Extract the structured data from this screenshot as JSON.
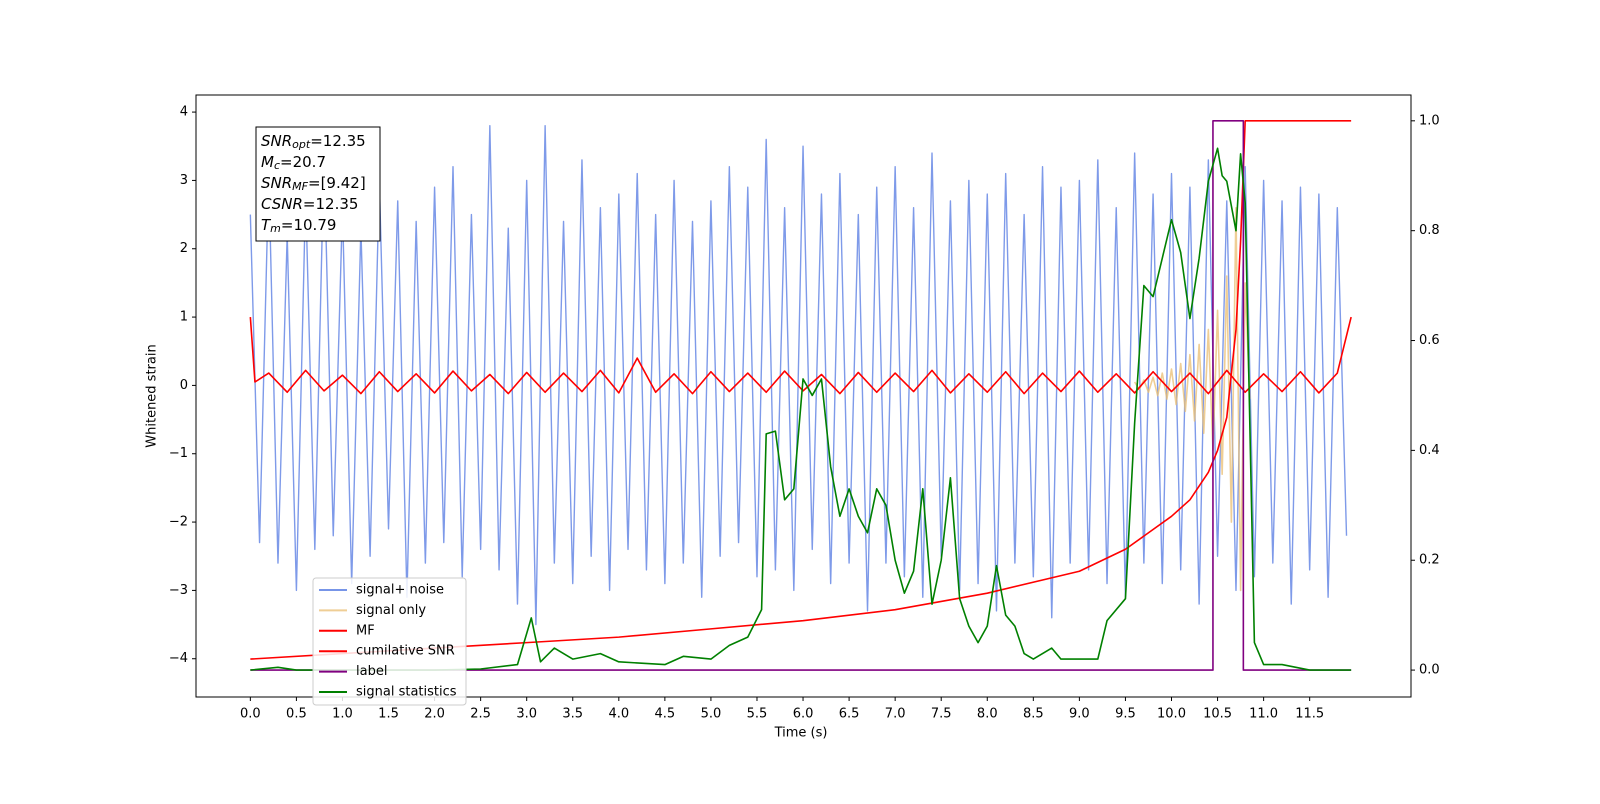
{
  "chart_data": {
    "type": "line",
    "xlabel": "Time (s)",
    "ylabel": "Whitened strain",
    "xlim": [
      -0.59,
      12.6
    ],
    "ylim": [
      -4.56,
      4.25
    ],
    "y2lim": [
      -0.049,
      1.047
    ],
    "xticks": [
      {
        "value": 0,
        "label": "0.0"
      },
      0.5,
      {
        "value": 1,
        "label": "1.0"
      },
      1.5,
      {
        "value": 2,
        "label": "2.0"
      },
      2.5,
      {
        "value": 3,
        "label": "3.0"
      },
      3.5,
      {
        "value": 4,
        "label": "4.0"
      },
      4.5,
      {
        "value": 5,
        "label": "5.0"
      },
      5.5,
      {
        "value": 6,
        "label": "6.0"
      },
      6.5,
      {
        "value": 7,
        "label": "7.0"
      },
      7.5,
      {
        "value": 8,
        "label": "8.0"
      },
      8.5,
      {
        "value": 9,
        "label": "9.0"
      },
      9.5,
      {
        "value": 10,
        "label": "10.0"
      },
      10.5,
      {
        "value": 11,
        "label": "11.0"
      },
      11.5
    ],
    "yticks": [
      {
        "value": -4,
        "label": "−4"
      },
      {
        "value": -3,
        "label": "−3"
      },
      {
        "value": -2,
        "label": "−2"
      },
      {
        "value": -1,
        "label": "−1"
      },
      0,
      1,
      2,
      3,
      4
    ],
    "y2ticks": [
      {
        "value": 0,
        "label": "0.0"
      },
      0.2,
      0.4,
      0.6,
      0.8,
      {
        "value": 1,
        "label": "1.0"
      }
    ],
    "legend_loc": "lower left",
    "annotation": [
      {
        "symbol": "SNR",
        "sub": "opt",
        "text": "=12.35"
      },
      {
        "symbol": "M",
        "sub": "c",
        "text": "=20.7"
      },
      {
        "symbol": "SNR",
        "sub": "MF",
        "text": "=[9.42]"
      },
      {
        "symbol": "CSNR",
        "text": "=12.35"
      },
      {
        "symbol": "T",
        "sub": "m",
        "text": "=10.79"
      }
    ],
    "series": [
      {
        "name": "signal+ noise",
        "color": "#7795e8",
        "x": [
          0.0,
          0.1,
          0.2,
          0.3,
          0.4,
          0.5,
          0.6,
          0.7,
          0.8,
          0.9,
          1.0,
          1.1,
          1.2,
          1.3,
          1.4,
          1.5,
          1.6,
          1.7,
          1.8,
          1.9,
          2.0,
          2.1,
          2.2,
          2.3,
          2.4,
          2.5,
          2.6,
          2.7,
          2.8,
          2.9,
          3.0,
          3.1,
          3.2,
          3.3,
          3.4,
          3.5,
          3.6,
          3.7,
          3.8,
          3.9,
          4.0,
          4.1,
          4.2,
          4.3,
          4.4,
          4.5,
          4.6,
          4.7,
          4.8,
          4.9,
          5.0,
          5.1,
          5.2,
          5.3,
          5.4,
          5.5,
          5.6,
          5.7,
          5.8,
          5.9,
          6.0,
          6.1,
          6.2,
          6.3,
          6.4,
          6.5,
          6.6,
          6.7,
          6.8,
          6.9,
          7.0,
          7.1,
          7.2,
          7.3,
          7.4,
          7.5,
          7.6,
          7.7,
          7.8,
          7.9,
          8.0,
          8.1,
          8.2,
          8.3,
          8.4,
          8.5,
          8.6,
          8.7,
          8.8,
          8.9,
          9.0,
          9.1,
          9.2,
          9.3,
          9.4,
          9.5,
          9.6,
          9.7,
          9.8,
          9.9,
          10.0,
          10.1,
          10.2,
          10.3,
          10.4,
          10.5,
          10.6,
          10.7,
          10.8,
          10.9,
          11.0,
          11.1,
          11.2,
          11.3,
          11.4,
          11.5,
          11.6,
          11.7,
          11.8,
          11.9
        ],
        "values": [
          2.5,
          -2.3,
          3.1,
          -2.6,
          2.2,
          -3.0,
          2.8,
          -2.4,
          3.4,
          -2.2,
          2.6,
          -2.9,
          2.3,
          -2.5,
          3.0,
          -2.1,
          2.7,
          -3.1,
          2.4,
          -2.6,
          2.9,
          -2.3,
          3.2,
          -2.8,
          2.5,
          -2.4,
          3.8,
          -2.7,
          2.3,
          -3.2,
          3.0,
          -3.5,
          3.8,
          -2.6,
          2.4,
          -2.9,
          3.3,
          -2.5,
          2.6,
          -3.0,
          2.8,
          -2.4,
          3.1,
          -2.7,
          2.5,
          -2.9,
          3.0,
          -2.6,
          2.4,
          -3.1,
          2.7,
          -2.5,
          3.2,
          -2.3,
          2.9,
          -2.8,
          3.6,
          -2.7,
          2.6,
          -3.0,
          3.5,
          -2.4,
          2.8,
          -2.9,
          3.1,
          -2.6,
          2.5,
          -3.3,
          2.9,
          -2.6,
          3.2,
          -2.8,
          2.6,
          -3.1,
          3.4,
          -2.5,
          2.7,
          -3.0,
          3.0,
          -2.9,
          2.8,
          -3.3,
          3.1,
          -2.6,
          2.5,
          -2.8,
          3.2,
          -3.4,
          2.9,
          -2.6,
          3.0,
          -2.7,
          3.3,
          -2.9,
          2.6,
          -3.1,
          3.4,
          -2.6,
          2.8,
          -2.9,
          3.1,
          -2.7,
          2.9,
          -3.2,
          3.3,
          -2.5,
          2.7,
          -3.0,
          3.2,
          -2.8,
          3.0,
          -2.6,
          2.7,
          -3.2,
          2.9,
          -2.7,
          2.8,
          -3.1,
          2.6,
          -2.2
        ]
      },
      {
        "name": "signal only",
        "color": "#e9bd72",
        "x": [
          9.6,
          9.65,
          9.7,
          9.75,
          9.8,
          9.85,
          9.9,
          9.95,
          10.0,
          10.05,
          10.1,
          10.15,
          10.2,
          10.25,
          10.3,
          10.35,
          10.4,
          10.45,
          10.5,
          10.55,
          10.6,
          10.65,
          10.7,
          10.75,
          10.8,
          10.85
        ],
        "values": [
          0.05,
          -0.06,
          0.08,
          -0.1,
          0.12,
          -0.15,
          0.18,
          -0.2,
          0.24,
          -0.28,
          0.32,
          -0.38,
          0.45,
          -0.52,
          0.6,
          -0.7,
          0.82,
          -0.95,
          1.1,
          -1.3,
          1.6,
          -2.0,
          2.6,
          -3.0,
          1.5,
          -0.2
        ]
      },
      {
        "name": "MF",
        "color": "#ff0000",
        "x": [
          0,
          0.05,
          0.2,
          0.4,
          0.6,
          0.8,
          1.0,
          1.2,
          1.4,
          1.6,
          1.8,
          2.0,
          2.2,
          2.4,
          2.6,
          2.8,
          3.0,
          3.2,
          3.4,
          3.6,
          3.8,
          4.0,
          4.2,
          4.4,
          4.6,
          4.8,
          5.0,
          5.2,
          5.4,
          5.6,
          5.8,
          6.0,
          6.2,
          6.4,
          6.6,
          6.8,
          7.0,
          7.2,
          7.4,
          7.6,
          7.8,
          8.0,
          8.2,
          8.4,
          8.6,
          8.8,
          9.0,
          9.2,
          9.4,
          9.6,
          9.8,
          10.0,
          10.2,
          10.4,
          10.6,
          10.8,
          11.0,
          11.2,
          11.4,
          11.6,
          11.8,
          11.95
        ],
        "values": [
          1.0,
          0.05,
          0.18,
          -0.1,
          0.22,
          -0.08,
          0.15,
          -0.12,
          0.2,
          -0.09,
          0.17,
          -0.11,
          0.21,
          -0.08,
          0.16,
          -0.12,
          0.19,
          -0.1,
          0.18,
          -0.09,
          0.22,
          -0.11,
          0.4,
          -0.1,
          0.17,
          -0.12,
          0.2,
          -0.09,
          0.18,
          -0.1,
          0.21,
          -0.08,
          0.16,
          -0.12,
          0.19,
          -0.1,
          0.18,
          -0.09,
          0.22,
          -0.11,
          0.17,
          -0.1,
          0.2,
          -0.12,
          0.18,
          -0.09,
          0.21,
          -0.1,
          0.17,
          -0.11,
          0.2,
          -0.09,
          0.18,
          -0.12,
          0.22,
          -0.1,
          0.17,
          -0.09,
          0.2,
          -0.11,
          0.18,
          1.0
        ]
      },
      {
        "name": "cumilative SNR",
        "color": "#ff0000",
        "axis": "y2",
        "x": [
          0,
          1,
          2,
          3,
          4,
          5,
          6,
          7,
          8,
          9,
          9.5,
          10,
          10.2,
          10.4,
          10.5,
          10.6,
          10.7,
          10.75,
          10.8,
          11,
          11.95
        ],
        "values": [
          0.02,
          0.03,
          0.04,
          0.05,
          0.06,
          0.075,
          0.09,
          0.11,
          0.14,
          0.18,
          0.22,
          0.28,
          0.31,
          0.36,
          0.4,
          0.46,
          0.62,
          0.78,
          1.0,
          1.0,
          1.0
        ]
      },
      {
        "name": "label",
        "color": "#800080",
        "axis": "y2",
        "x": [
          0,
          10.45,
          10.45,
          10.78,
          10.78,
          11.95
        ],
        "values": [
          0,
          0,
          1,
          1,
          0,
          0
        ]
      },
      {
        "name": "signal statistics",
        "color": "#008000",
        "axis": "y2",
        "x": [
          0,
          0.3,
          0.5,
          1,
          2,
          2.5,
          2.9,
          3.05,
          3.15,
          3.3,
          3.5,
          3.8,
          4.0,
          4.5,
          4.7,
          5.0,
          5.2,
          5.4,
          5.55,
          5.6,
          5.7,
          5.8,
          5.9,
          6.0,
          6.1,
          6.2,
          6.3,
          6.4,
          6.5,
          6.6,
          6.7,
          6.8,
          6.9,
          7.0,
          7.1,
          7.2,
          7.3,
          7.4,
          7.5,
          7.6,
          7.7,
          7.8,
          7.9,
          8.0,
          8.1,
          8.2,
          8.3,
          8.4,
          8.5,
          8.7,
          8.8,
          9.0,
          9.2,
          9.3,
          9.5,
          9.6,
          9.7,
          9.8,
          9.9,
          10.0,
          10.1,
          10.2,
          10.3,
          10.4,
          10.5,
          10.55,
          10.6,
          10.7,
          10.75,
          10.8,
          10.9,
          11.0,
          11.2,
          11.5,
          11.95
        ],
        "values": [
          0,
          0.005,
          0,
          0,
          0,
          0.002,
          0.01,
          0.095,
          0.015,
          0.04,
          0.02,
          0.03,
          0.015,
          0.01,
          0.025,
          0.02,
          0.045,
          0.06,
          0.11,
          0.43,
          0.435,
          0.31,
          0.33,
          0.53,
          0.5,
          0.53,
          0.37,
          0.28,
          0.33,
          0.28,
          0.25,
          0.33,
          0.3,
          0.2,
          0.14,
          0.18,
          0.33,
          0.12,
          0.2,
          0.35,
          0.13,
          0.08,
          0.05,
          0.08,
          0.19,
          0.1,
          0.08,
          0.03,
          0.02,
          0.04,
          0.02,
          0.02,
          0.02,
          0.09,
          0.13,
          0.45,
          0.7,
          0.68,
          0.75,
          0.82,
          0.76,
          0.64,
          0.75,
          0.89,
          0.95,
          0.9,
          0.89,
          0.8,
          0.94,
          0.85,
          0.05,
          0.01,
          0.01,
          0,
          0
        ]
      }
    ]
  }
}
